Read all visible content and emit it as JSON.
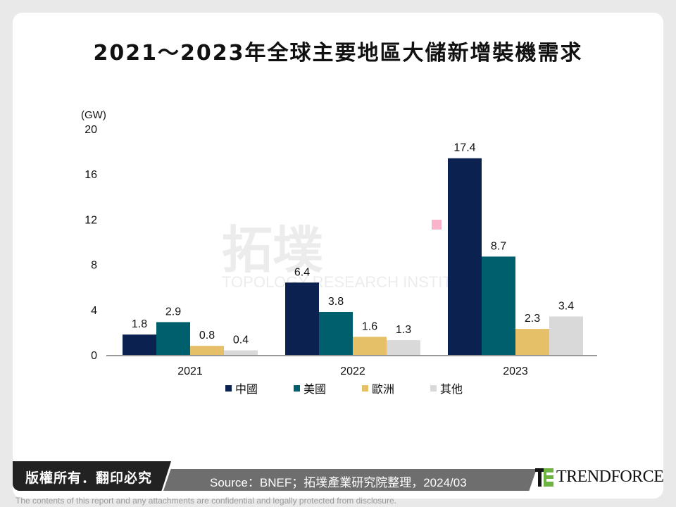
{
  "title": "2021～2023年全球主要地區大儲新增裝機需求",
  "chart_data": {
    "type": "bar",
    "title": "2021～2023年全球主要地區大儲新增裝機需求",
    "ylabel": "(GW)",
    "ylim": [
      0,
      20
    ],
    "yticks": [
      0,
      4,
      8,
      12,
      16,
      20
    ],
    "categories": [
      "2021",
      "2022",
      "2023"
    ],
    "series": [
      {
        "name": "中國",
        "color": "#0b2150",
        "values": [
          1.8,
          6.4,
          17.4
        ]
      },
      {
        "name": "美國",
        "color": "#005f6c",
        "values": [
          2.9,
          3.8,
          8.7
        ]
      },
      {
        "name": "歐洲",
        "color": "#e6bf69",
        "values": [
          0.8,
          1.6,
          2.3
        ]
      },
      {
        "name": "其他",
        "color": "#d9d9d9",
        "values": [
          0.4,
          1.3,
          3.4
        ]
      }
    ],
    "legend": "bottom",
    "grid": false
  },
  "watermark": {
    "main": "拓墣",
    "sub": "TOPOLOGY RESEARCH INSTITUTE"
  },
  "footer": {
    "copyright": "版權所有．翻印必究",
    "source": "Source：BNEF；拓墣產業研究院整理，2024/03",
    "logo": "TRENDFORCE",
    "disclaimer": "The contents of this report and any attachments are confidential and legally protected from disclosure."
  }
}
